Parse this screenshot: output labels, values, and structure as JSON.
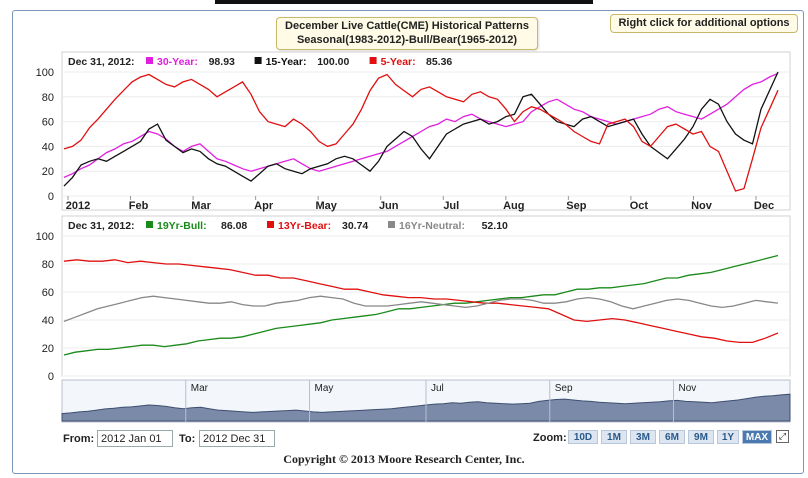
{
  "title_line1": "December Live Cattle(CME) Historical Patterns",
  "title_line2": "Seasonal(1983-2012)-Bull/Bear(1965-2012)",
  "right_click_hint": "Right click for additional options",
  "chart_data": [
    {
      "type": "line",
      "panel": "seasonal",
      "legend_date": "Dec 31, 2012:",
      "series": [
        {
          "name": "30-Year:",
          "display_value": "98.93",
          "color": "#e020e0",
          "values": [
            15,
            18,
            22,
            25,
            30,
            35,
            38,
            42,
            44,
            48,
            52,
            50,
            46,
            40,
            36,
            40,
            42,
            36,
            30,
            28,
            25,
            22,
            20,
            22,
            24,
            26,
            28,
            30,
            26,
            22,
            20,
            22,
            24,
            26,
            28,
            30,
            32,
            34,
            36,
            40,
            44,
            48,
            52,
            56,
            58,
            62,
            60,
            64,
            66,
            62,
            60,
            58,
            56,
            58,
            60,
            68,
            72,
            76,
            78,
            74,
            70,
            68,
            64,
            62,
            60,
            58,
            60,
            62,
            64,
            66,
            70,
            72,
            68,
            66,
            64,
            62,
            66,
            70,
            74,
            80,
            86,
            90,
            92,
            96,
            98.93
          ]
        },
        {
          "name": "15-Year:",
          "display_value": "100.00",
          "color": "#111111",
          "values": [
            8,
            15,
            25,
            28,
            30,
            28,
            32,
            36,
            40,
            44,
            54,
            58,
            45,
            40,
            35,
            38,
            36,
            30,
            26,
            24,
            20,
            16,
            12,
            18,
            24,
            26,
            22,
            20,
            18,
            22,
            24,
            26,
            30,
            32,
            30,
            25,
            20,
            28,
            40,
            46,
            52,
            48,
            38,
            30,
            40,
            50,
            54,
            58,
            60,
            62,
            58,
            60,
            64,
            66,
            80,
            82,
            74,
            66,
            60,
            58,
            56,
            62,
            64,
            60,
            56,
            58,
            60,
            62,
            50,
            40,
            35,
            30,
            38,
            46,
            56,
            70,
            78,
            74,
            60,
            50,
            45,
            42,
            70,
            85,
            100
          ]
        },
        {
          "name": "5-Year:",
          "display_value": "85.36",
          "color": "#e01010",
          "values": [
            38,
            40,
            45,
            55,
            62,
            70,
            78,
            85,
            92,
            96,
            98,
            94,
            90,
            88,
            92,
            94,
            90,
            86,
            80,
            84,
            88,
            92,
            82,
            68,
            60,
            58,
            56,
            62,
            58,
            52,
            44,
            40,
            42,
            50,
            58,
            70,
            85,
            95,
            98,
            90,
            85,
            80,
            86,
            88,
            84,
            80,
            78,
            76,
            82,
            84,
            80,
            78,
            70,
            60,
            68,
            72,
            70,
            66,
            62,
            58,
            52,
            48,
            44,
            42,
            58,
            60,
            62,
            56,
            44,
            40,
            48,
            56,
            58,
            54,
            50,
            52,
            40,
            36,
            20,
            4,
            6,
            30,
            55,
            70,
            85.36
          ]
        }
      ],
      "x_tick_labels": [
        "2012",
        "Feb",
        "Mar",
        "Apr",
        "May",
        "Jun",
        "Jul",
        "Aug",
        "Sep",
        "Oct",
        "Nov",
        "Dec"
      ],
      "y_ticks": [
        0,
        20,
        40,
        60,
        80,
        100
      ],
      "ylim": [
        0,
        100
      ]
    },
    {
      "type": "line",
      "panel": "bull-bear",
      "legend_date": "Dec 31, 2012:",
      "series": [
        {
          "name": "19Yr-Bull:",
          "display_value": "86.08",
          "color": "#1a8a1a",
          "values": [
            15,
            17,
            18,
            19,
            19,
            20,
            21,
            22,
            22,
            21,
            22,
            23,
            25,
            26,
            27,
            27,
            28,
            30,
            32,
            34,
            35,
            36,
            37,
            38,
            40,
            41,
            42,
            43,
            44,
            46,
            48,
            48,
            49,
            50,
            51,
            52,
            52,
            53,
            54,
            55,
            56,
            56,
            57,
            58,
            58,
            60,
            62,
            62,
            63,
            63,
            64,
            65,
            66,
            68,
            70,
            70,
            72,
            73,
            74,
            76,
            78,
            80,
            82,
            84,
            86.08
          ]
        },
        {
          "name": "13Yr-Bear:",
          "display_value": "30.74",
          "color": "#e01010",
          "values": [
            82,
            83,
            82,
            82,
            83,
            81,
            82,
            81,
            80,
            80,
            79,
            78,
            77,
            76,
            74,
            72,
            72,
            70,
            70,
            68,
            66,
            64,
            62,
            62,
            60,
            58,
            57,
            56,
            56,
            55,
            55,
            54,
            53,
            52,
            52,
            51,
            50,
            49,
            48,
            44,
            40,
            39,
            40,
            41,
            40,
            38,
            36,
            34,
            32,
            30,
            28,
            27,
            25,
            24,
            24,
            27,
            30.74
          ]
        },
        {
          "name": "16Yr-Neutral:",
          "display_value": "52.10",
          "color": "#888888",
          "values": [
            39,
            42,
            45,
            48,
            50,
            52,
            54,
            56,
            57,
            56,
            55,
            54,
            53,
            52,
            52,
            53,
            51,
            50,
            50,
            52,
            53,
            54,
            56,
            57,
            56,
            55,
            52,
            50,
            50,
            50,
            51,
            52,
            53,
            52,
            51,
            50,
            49,
            50,
            52,
            54,
            55,
            55,
            54,
            52,
            52,
            53,
            55,
            56,
            55,
            53,
            50,
            48,
            50,
            52,
            54,
            55,
            54,
            52,
            50,
            49,
            50,
            52,
            54,
            53,
            52.1
          ]
        }
      ],
      "y_ticks": [
        0,
        20,
        40,
        60,
        80,
        100
      ],
      "ylim": [
        0,
        100
      ]
    }
  ],
  "navigator": {
    "month_labels": [
      "Mar",
      "May",
      "Jul",
      "Sep",
      "Nov"
    ]
  },
  "from_label": "From:",
  "from_value": "2012 Jan 01",
  "to_label": "To:",
  "to_value": "2012 Dec 31",
  "zoom": {
    "label": "Zoom:",
    "options": [
      "10D",
      "1M",
      "3M",
      "6M",
      "9M",
      "1Y",
      "MAX"
    ],
    "selected": "MAX"
  },
  "copyright": "Copyright © 2013 Moore Research Center, Inc."
}
